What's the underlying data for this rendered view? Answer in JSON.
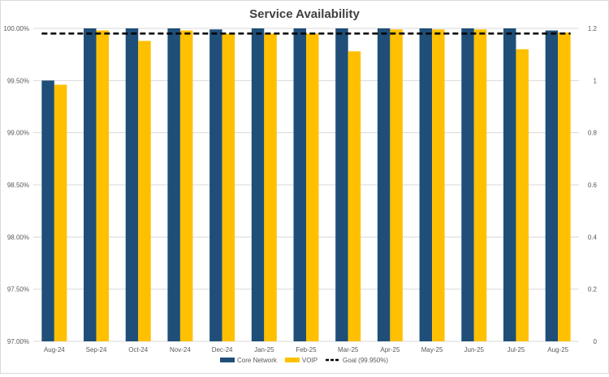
{
  "chart_data": {
    "type": "bar",
    "title": "Service Availability",
    "xlabel": "",
    "ylabel": "",
    "categories": [
      "Aug-24",
      "Sep-24",
      "Oct-24",
      "Nov-24",
      "Dec-24",
      "Jan-25",
      "Feb-25",
      "Mar-25",
      "Apr-25",
      "May-25",
      "Jun-25",
      "Jul-25",
      "Aug-25"
    ],
    "series": [
      {
        "name": "Core Network",
        "color": "#1f4e79",
        "values": [
          99.5,
          100.0,
          100.0,
          100.0,
          99.99,
          100.0,
          100.0,
          100.0,
          100.0,
          100.0,
          100.0,
          100.0,
          99.98
        ]
      },
      {
        "name": "VOIP",
        "color": "#ffc000",
        "values": [
          99.46,
          99.98,
          99.88,
          99.98,
          99.95,
          99.95,
          99.95,
          99.78,
          99.99,
          99.99,
          99.99,
          99.8,
          99.96
        ]
      }
    ],
    "goal": {
      "name": "Goal (99.950%)",
      "value": 99.95,
      "color": "#000000"
    },
    "ylim": [
      97.0,
      100.0
    ],
    "yticks": [
      "97.00%",
      "97.50%",
      "98.00%",
      "98.50%",
      "99.00%",
      "99.50%",
      "100.00%"
    ],
    "y2lim": [
      0,
      1.2
    ],
    "y2ticks": [
      "0",
      "0.2",
      "0.4",
      "0.6",
      "0.8",
      "1",
      "1.2"
    ],
    "grid": true,
    "legend": "bottom"
  }
}
